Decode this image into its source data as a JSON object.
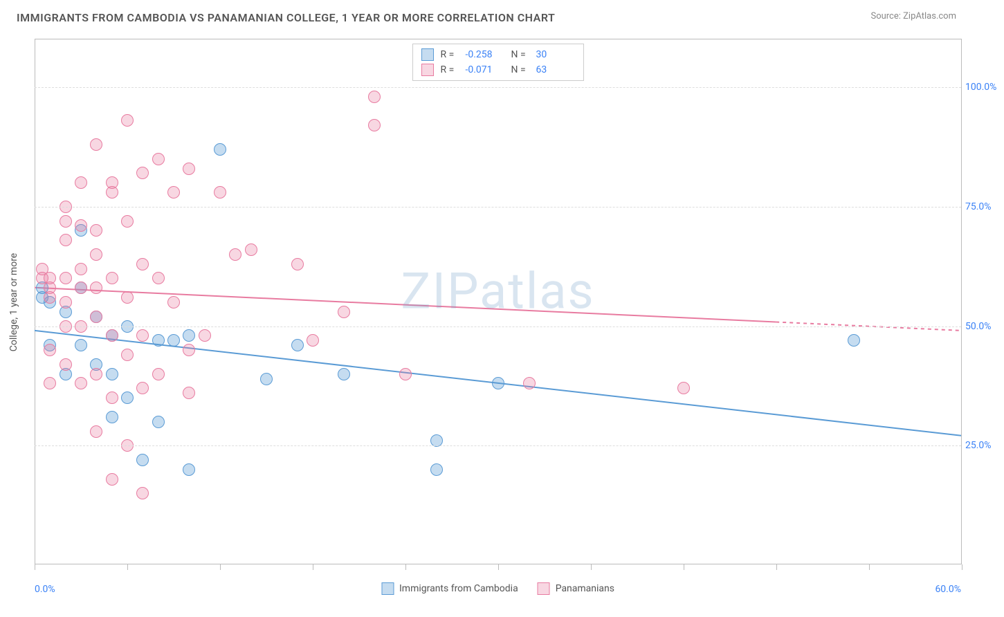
{
  "header": {
    "title": "IMMIGRANTS FROM CAMBODIA VS PANAMANIAN COLLEGE, 1 YEAR OR MORE CORRELATION CHART",
    "source": "Source: ZipAtlas.com"
  },
  "watermark": "ZIPatlas",
  "chart": {
    "type": "scatter",
    "background_color": "#ffffff",
    "grid_color": "#dddddd",
    "axis_color": "#bbbbbb",
    "tick_label_color": "#3b82f6",
    "axis_label_color": "#555555",
    "y_axis_label": "College, 1 year or more",
    "xlim": [
      0,
      60
    ],
    "ylim": [
      0,
      110
    ],
    "y_ticks": [
      25,
      50,
      75,
      100
    ],
    "y_tick_labels": [
      "25.0%",
      "50.0%",
      "75.0%",
      "100.0%"
    ],
    "x_ticks_minor": [
      0,
      6,
      12,
      18,
      24,
      30,
      36,
      42,
      48,
      54,
      60
    ],
    "x_min_label": "0.0%",
    "x_max_label": "60.0%",
    "point_radius": 9,
    "point_opacity": 0.55,
    "series": [
      {
        "key": "cambodia",
        "label": "Immigrants from Cambodia",
        "stroke": "#5a9bd5",
        "fill": "rgba(90,155,213,0.35)",
        "R": "-0.258",
        "N": "30",
        "trend": {
          "x1": 0,
          "y1": 49,
          "x2": 60,
          "y2": 27,
          "dash_from_x": 60
        },
        "points": [
          [
            0.5,
            58
          ],
          [
            0.5,
            56
          ],
          [
            1,
            55
          ],
          [
            1,
            46
          ],
          [
            2,
            40
          ],
          [
            2,
            53
          ],
          [
            3,
            70
          ],
          [
            3,
            58
          ],
          [
            3,
            46
          ],
          [
            4,
            42
          ],
          [
            4,
            52
          ],
          [
            5,
            40
          ],
          [
            5,
            31
          ],
          [
            5,
            48
          ],
          [
            6,
            35
          ],
          [
            6,
            50
          ],
          [
            7,
            22
          ],
          [
            8,
            47
          ],
          [
            8,
            30
          ],
          [
            9,
            47
          ],
          [
            10,
            48
          ],
          [
            10,
            20
          ],
          [
            12,
            87
          ],
          [
            15,
            39
          ],
          [
            17,
            46
          ],
          [
            20,
            40
          ],
          [
            26,
            26
          ],
          [
            26,
            20
          ],
          [
            30,
            38
          ],
          [
            53,
            47
          ]
        ]
      },
      {
        "key": "panamanians",
        "label": "Panamanians",
        "stroke": "#e87ba0",
        "fill": "rgba(232,123,160,0.30)",
        "R": "-0.071",
        "N": "63",
        "trend": {
          "x1": 0,
          "y1": 58,
          "x2": 60,
          "y2": 49,
          "dash_from_x": 48
        },
        "points": [
          [
            0.5,
            60
          ],
          [
            0.5,
            62
          ],
          [
            1,
            60
          ],
          [
            1,
            58
          ],
          [
            1,
            56
          ],
          [
            1,
            45
          ],
          [
            1,
            38
          ],
          [
            2,
            75
          ],
          [
            2,
            72
          ],
          [
            2,
            68
          ],
          [
            2,
            60
          ],
          [
            2,
            55
          ],
          [
            2,
            50
          ],
          [
            2,
            42
          ],
          [
            3,
            80
          ],
          [
            3,
            71
          ],
          [
            3,
            62
          ],
          [
            3,
            58
          ],
          [
            3,
            50
          ],
          [
            3,
            38
          ],
          [
            4,
            88
          ],
          [
            4,
            70
          ],
          [
            4,
            65
          ],
          [
            4,
            58
          ],
          [
            4,
            52
          ],
          [
            4,
            40
          ],
          [
            4,
            28
          ],
          [
            5,
            78
          ],
          [
            5,
            80
          ],
          [
            5,
            60
          ],
          [
            5,
            48
          ],
          [
            5,
            35
          ],
          [
            5,
            18
          ],
          [
            6,
            93
          ],
          [
            6,
            72
          ],
          [
            6,
            56
          ],
          [
            6,
            44
          ],
          [
            6,
            25
          ],
          [
            7,
            82
          ],
          [
            7,
            63
          ],
          [
            7,
            48
          ],
          [
            7,
            37
          ],
          [
            7,
            15
          ],
          [
            8,
            85
          ],
          [
            8,
            60
          ],
          [
            8,
            40
          ],
          [
            9,
            78
          ],
          [
            9,
            55
          ],
          [
            10,
            83
          ],
          [
            10,
            45
          ],
          [
            10,
            36
          ],
          [
            11,
            48
          ],
          [
            12,
            78
          ],
          [
            13,
            65
          ],
          [
            14,
            66
          ],
          [
            17,
            63
          ],
          [
            18,
            47
          ],
          [
            20,
            53
          ],
          [
            22,
            92
          ],
          [
            22,
            98
          ],
          [
            24,
            40
          ],
          [
            32,
            38
          ],
          [
            42,
            37
          ]
        ]
      }
    ]
  },
  "legend_bottom": {
    "items": [
      {
        "label": "Immigrants from Cambodia",
        "fill": "rgba(90,155,213,0.35)",
        "stroke": "#5a9bd5"
      },
      {
        "label": "Panamanians",
        "fill": "rgba(232,123,160,0.30)",
        "stroke": "#e87ba0"
      }
    ]
  }
}
